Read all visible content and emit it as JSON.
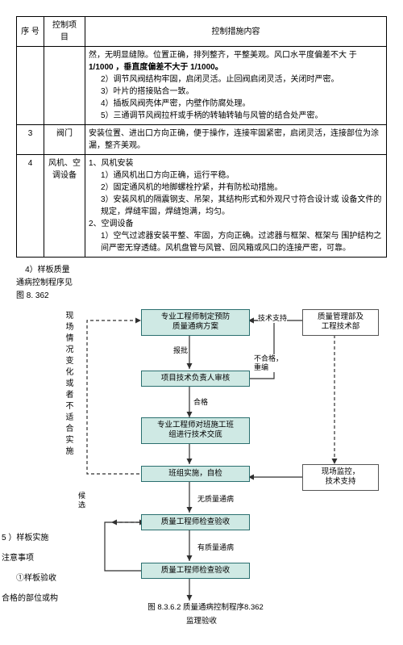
{
  "table": {
    "headers": {
      "seq": "序 号",
      "item": "控制项 目",
      "content": "控制措施内容"
    },
    "rows": [
      {
        "seq": "",
        "item": "",
        "content_lines": [
          "然，无明显缝隙。位置正确，排列整齐，平整美观。风口水平度偏差不大 于",
          "1/1000 ，垂直度偏差不大于 1/1000。",
          "2）调节风阀结构牢固，启闭灵活。止回阀启闭灵活，关闭时严密。",
          "3）叶片的搭接贴合一致。",
          "4）插板风阀壳体严密，内壁作防腐处理。",
          "5）三通调节风阀拉杆或手柄的转轴转轴与风管的结合处严密。"
        ]
      },
      {
        "seq": "3",
        "item": "阀门",
        "content_lines": [
          "安装位置、进出口方向正确，便于操作，连接牢固紧密，启闭灵活，连接部位为涂漏，整齐美观。"
        ]
      },
      {
        "seq": "4",
        "item": "风机、空调设备",
        "content_lines": [
          "1、风机安装",
          "1）通风机出口方向正确，运行平稳。",
          "2）固定通风机的地脚螺栓拧紧，并有防松动措施。",
          "3）安装风机的隔震钢支、吊架，其结构形式和外观尺寸符合设计或 设备文件的规定，焊缝牢固，焊缝饱满，均匀。",
          "2、空调设备",
          "1）空气过滤器安装平整、牢固，方向正确。过滤器与框架、框架与 围护结构之间严密无穿透缝。风机盘管与风管、回风箱或风口的连接严密，可靠。"
        ]
      }
    ]
  },
  "after": {
    "t1": "4）样板质量",
    "t2": "通病控制程序见",
    "t3": "图 8. 362"
  },
  "leftcol": "现场情况变化或者不适合实施",
  "nodes": {
    "n1": "专业工程师制定预防\n质量通病方案",
    "n2": "项目技术负责人审核",
    "n3": "专业工程师对班施工班\n组进行技术交底",
    "n4": "班组实施，自检",
    "n5": "质量工程师检查验收",
    "n6": "质量工程师检查验收",
    "r1": "质量管理部及\n工程技术部",
    "r2": "现场监控，\n技术支持"
  },
  "labels": {
    "techsupport": "技术支持",
    "report": "报批",
    "nothrough": "不合格，\n重编",
    "pass": "合格",
    "nodefect": "无质量通病",
    "hasdefect": "有质量通病",
    "candidate": "候    选"
  },
  "sidetext": {
    "s1": "5   ）样板实施",
    "s2": "注意事项",
    "s3": "①样板验收",
    "s4": "合格的部位或构"
  },
  "caption1": "图 8.3.6.2    质量通病控制程序8.362",
  "caption2": "监理验收",
  "colors": {
    "node_fill": "#cfe9e4",
    "node_border": "#2a6f6f",
    "arrow": "#2f2f2f"
  }
}
